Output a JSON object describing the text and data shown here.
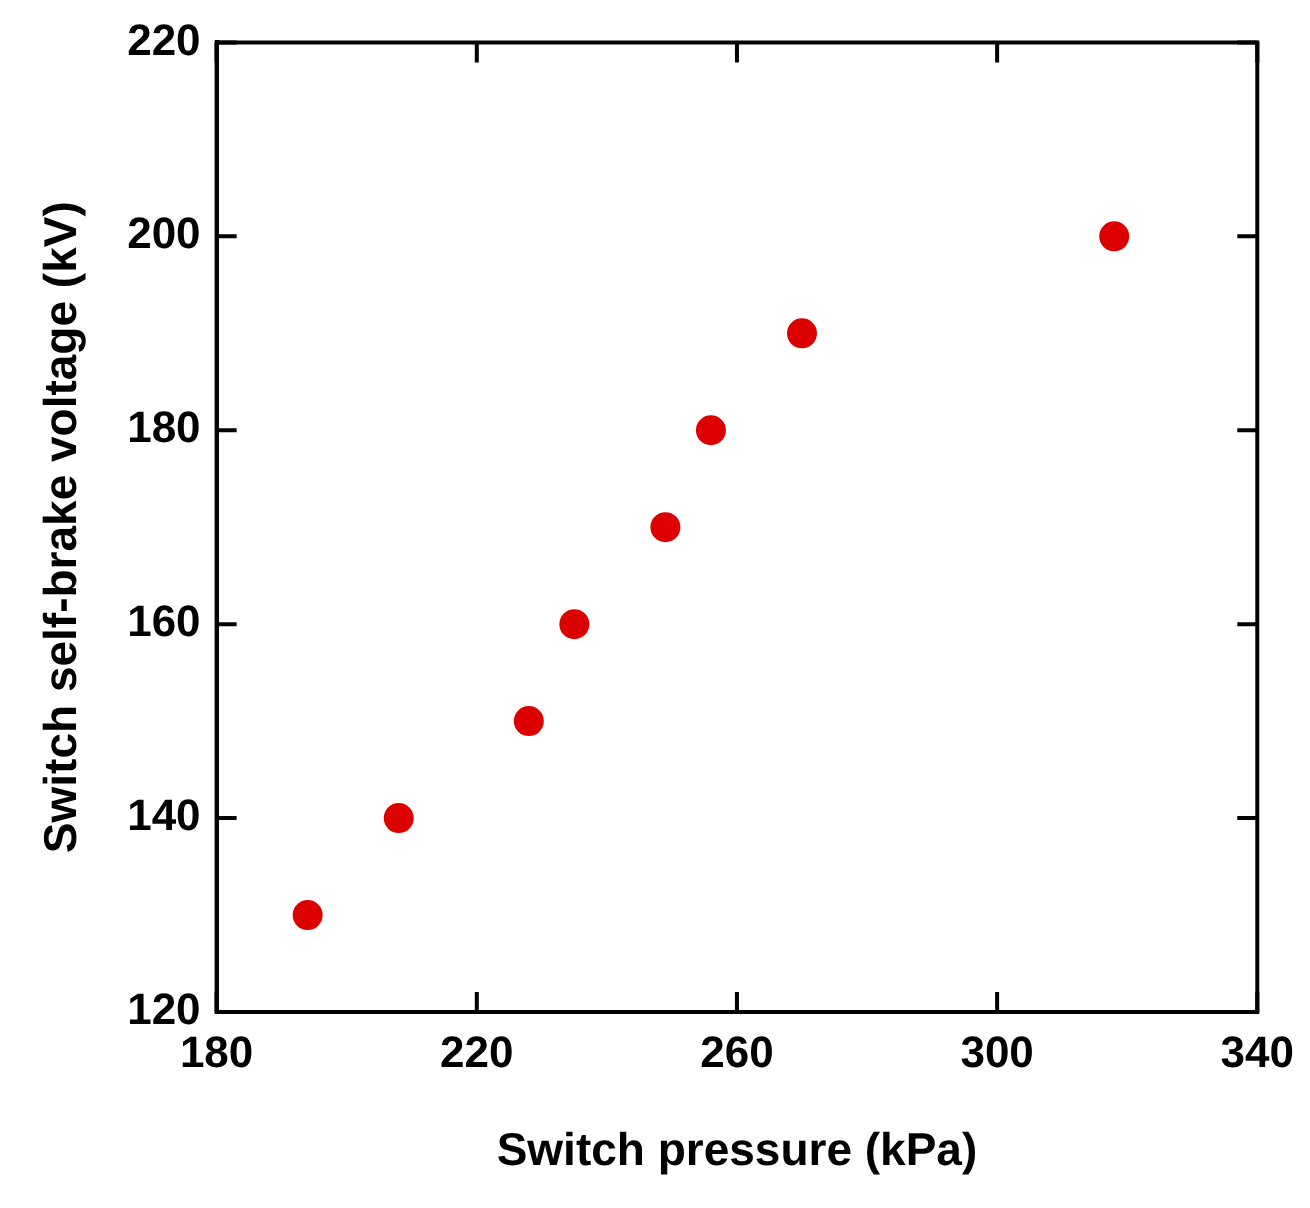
{
  "chart_data": {
    "type": "scatter",
    "xlabel": "Switch pressure (kPa)",
    "ylabel": "Switch self-brake voltage (kV)",
    "x": [
      194,
      208,
      228,
      235,
      249,
      256,
      270,
      318
    ],
    "series": [
      {
        "color": "#dd0000",
        "values": [
          130,
          140,
          150,
          160,
          170,
          180,
          190,
          200
        ]
      }
    ],
    "xlim": [
      180,
      340
    ],
    "xticks": [
      180,
      220,
      260,
      300,
      340
    ],
    "ylim": [
      120,
      220
    ],
    "yticks": [
      120,
      140,
      160,
      180,
      200,
      220
    ],
    "grid": false,
    "legend": false,
    "marker": "circle"
  }
}
